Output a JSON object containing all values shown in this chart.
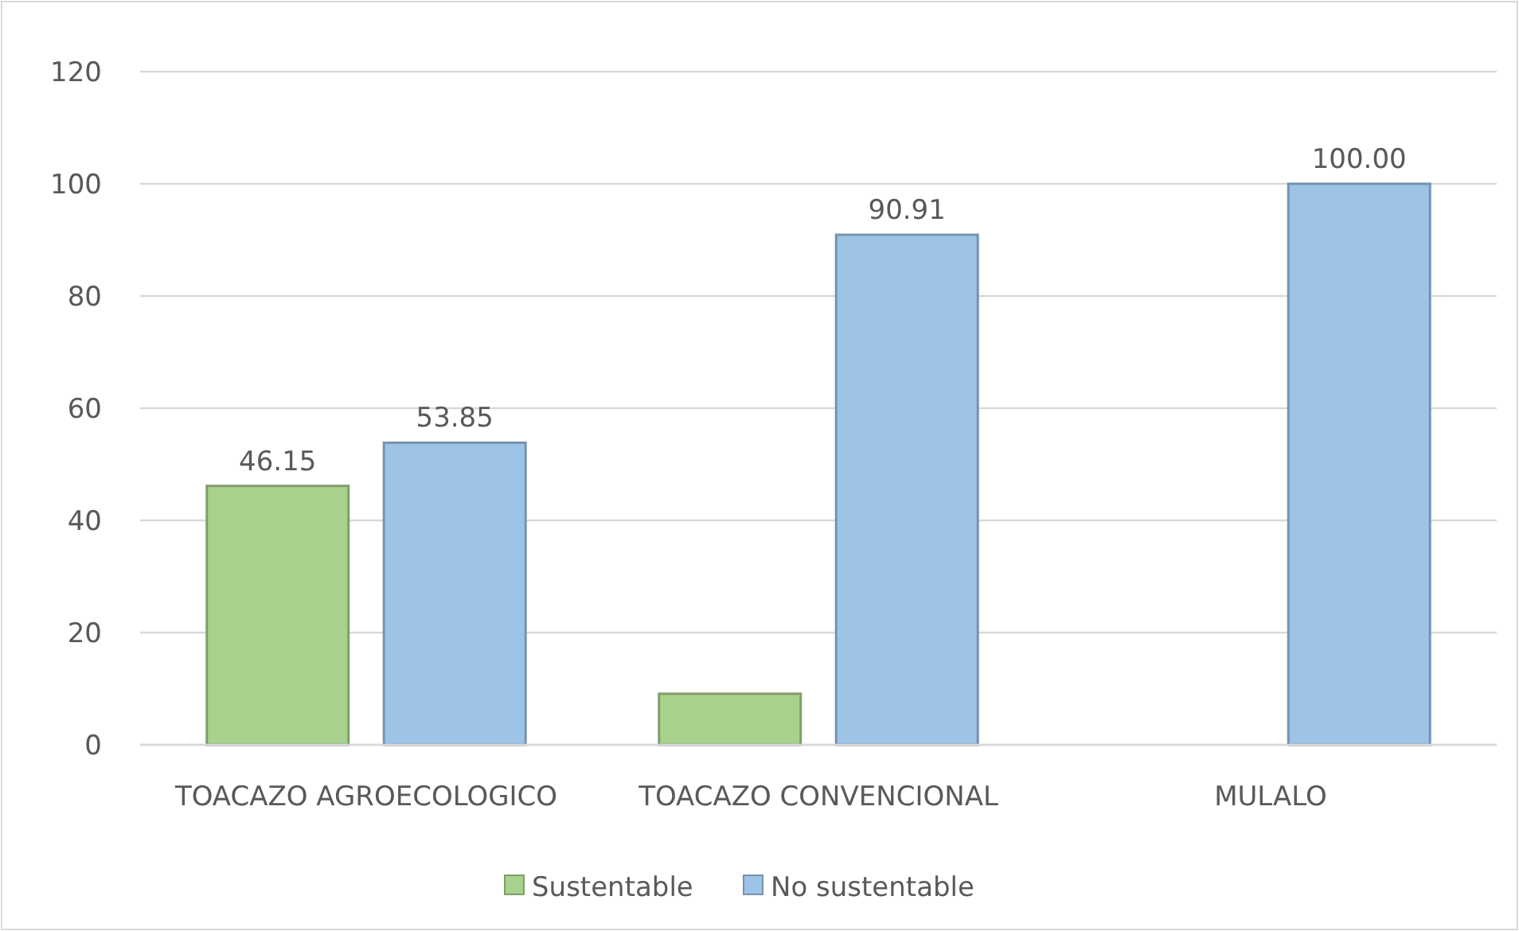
{
  "chart_data": {
    "type": "bar",
    "categories": [
      "TOACAZO AGROECOLOGICO",
      "TOACAZO CONVENCIONAL",
      "MULALO"
    ],
    "series": [
      {
        "name": "Sustentable",
        "color": "#a9d18e",
        "values": [
          46.15,
          9.1,
          0
        ],
        "value_labels": [
          "46.15",
          null,
          null
        ]
      },
      {
        "name": "No sustentable",
        "color": "#9dc3e6",
        "values": [
          53.85,
          90.91,
          100
        ],
        "value_labels": [
          "53.85",
          "90.91",
          "100.00"
        ]
      }
    ],
    "ylim": [
      0,
      120
    ],
    "yticks": [
      0,
      20,
      40,
      60,
      80,
      100,
      120
    ],
    "grid": "y",
    "legend": "bottom"
  }
}
